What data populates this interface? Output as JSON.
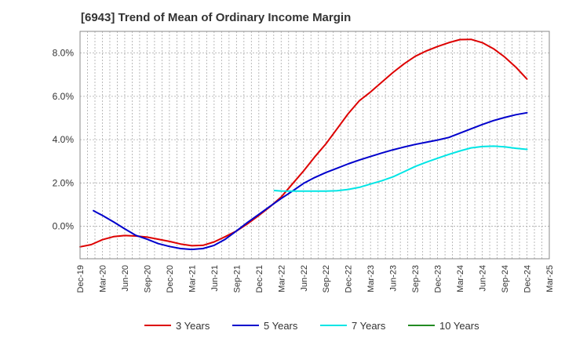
{
  "chart_data": {
    "type": "line",
    "title": "[6943]  Trend of Mean of Ordinary Income Margin",
    "xlabel": "",
    "ylabel": "",
    "ylim": [
      -1.5,
      9.0
    ],
    "yticks": [
      0,
      2,
      4,
      6,
      8
    ],
    "ytick_labels": [
      "0.0%",
      "2.0%",
      "4.0%",
      "6.0%",
      "8.0%"
    ],
    "xtick_labels": [
      "Dec-19",
      "Mar-20",
      "Jun-20",
      "Sep-20",
      "Dec-20",
      "Mar-21",
      "Jun-21",
      "Sep-21",
      "Dec-21",
      "Mar-22",
      "Jun-22",
      "Sep-22",
      "Dec-22",
      "Mar-23",
      "Jun-23",
      "Sep-23",
      "Dec-23",
      "Mar-24",
      "Jun-24",
      "Sep-24",
      "Dec-24",
      "Mar-25"
    ],
    "grid": true,
    "legend_position": "bottom",
    "series": [
      {
        "name": "3 Years",
        "color": "#dd0000",
        "values": [
          [
            0,
            -0.95
          ],
          [
            0.5,
            -0.85
          ],
          [
            1,
            -0.62
          ],
          [
            1.5,
            -0.48
          ],
          [
            2,
            -0.43
          ],
          [
            2.5,
            -0.45
          ],
          [
            3,
            -0.5
          ],
          [
            3.5,
            -0.6
          ],
          [
            4,
            -0.7
          ],
          [
            4.5,
            -0.82
          ],
          [
            5,
            -0.9
          ],
          [
            5.5,
            -0.88
          ],
          [
            6,
            -0.72
          ],
          [
            6.5,
            -0.48
          ],
          [
            7,
            -0.22
          ],
          [
            7.5,
            0.12
          ],
          [
            8,
            0.5
          ],
          [
            8.5,
            0.9
          ],
          [
            9,
            1.35
          ],
          [
            9.5,
            1.95
          ],
          [
            10,
            2.55
          ],
          [
            10.5,
            3.2
          ],
          [
            11,
            3.8
          ],
          [
            11.5,
            4.5
          ],
          [
            12,
            5.2
          ],
          [
            12.5,
            5.8
          ],
          [
            13,
            6.2
          ],
          [
            13.5,
            6.65
          ],
          [
            14,
            7.1
          ],
          [
            14.5,
            7.5
          ],
          [
            15,
            7.85
          ],
          [
            15.5,
            8.1
          ],
          [
            16,
            8.3
          ],
          [
            16.5,
            8.48
          ],
          [
            17,
            8.62
          ],
          [
            17.5,
            8.63
          ],
          [
            18,
            8.48
          ],
          [
            18.5,
            8.2
          ],
          [
            19,
            7.82
          ],
          [
            19.5,
            7.35
          ],
          [
            20,
            6.8
          ]
        ]
      },
      {
        "name": "5 Years",
        "color": "#0000cc",
        "values": [
          [
            0.6,
            0.72
          ],
          [
            1,
            0.5
          ],
          [
            1.5,
            0.2
          ],
          [
            2,
            -0.12
          ],
          [
            2.5,
            -0.42
          ],
          [
            3,
            -0.6
          ],
          [
            3.5,
            -0.8
          ],
          [
            4,
            -0.93
          ],
          [
            4.5,
            -1.03
          ],
          [
            5,
            -1.07
          ],
          [
            5.5,
            -1.03
          ],
          [
            6,
            -0.88
          ],
          [
            6.5,
            -0.6
          ],
          [
            7,
            -0.22
          ],
          [
            7.5,
            0.18
          ],
          [
            8,
            0.55
          ],
          [
            8.5,
            0.92
          ],
          [
            9,
            1.28
          ],
          [
            9.5,
            1.62
          ],
          [
            10,
            1.98
          ],
          [
            10.5,
            2.25
          ],
          [
            11,
            2.48
          ],
          [
            11.5,
            2.68
          ],
          [
            12,
            2.88
          ],
          [
            12.5,
            3.06
          ],
          [
            13,
            3.22
          ],
          [
            13.5,
            3.38
          ],
          [
            14,
            3.53
          ],
          [
            14.5,
            3.66
          ],
          [
            15,
            3.78
          ],
          [
            15.5,
            3.88
          ],
          [
            16,
            3.98
          ],
          [
            16.5,
            4.1
          ],
          [
            17,
            4.3
          ],
          [
            17.5,
            4.5
          ],
          [
            18,
            4.7
          ],
          [
            18.5,
            4.88
          ],
          [
            19,
            5.02
          ],
          [
            19.5,
            5.15
          ],
          [
            20,
            5.24
          ]
        ]
      },
      {
        "name": "7 Years",
        "color": "#00e5e5",
        "values": [
          [
            8.7,
            1.65
          ],
          [
            9,
            1.63
          ],
          [
            9.5,
            1.62
          ],
          [
            10,
            1.62
          ],
          [
            10.5,
            1.62
          ],
          [
            11,
            1.62
          ],
          [
            11.5,
            1.64
          ],
          [
            12,
            1.7
          ],
          [
            12.5,
            1.8
          ],
          [
            13,
            1.95
          ],
          [
            13.5,
            2.1
          ],
          [
            14,
            2.28
          ],
          [
            14.5,
            2.52
          ],
          [
            15,
            2.76
          ],
          [
            15.5,
            2.96
          ],
          [
            16,
            3.14
          ],
          [
            16.5,
            3.32
          ],
          [
            17,
            3.48
          ],
          [
            17.5,
            3.62
          ],
          [
            18,
            3.68
          ],
          [
            18.5,
            3.7
          ],
          [
            19,
            3.67
          ],
          [
            19.5,
            3.6
          ],
          [
            20,
            3.55
          ]
        ]
      },
      {
        "name": "10 Years",
        "color": "#228b22",
        "values": []
      }
    ]
  }
}
